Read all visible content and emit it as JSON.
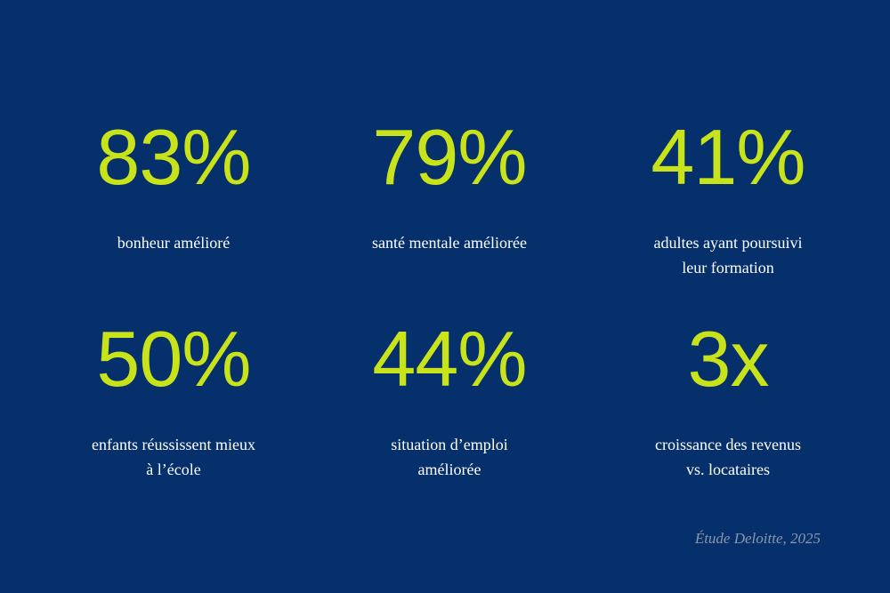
{
  "colors": {
    "background": "#06306b",
    "accent": "#c9e31b",
    "text": "#ffffff",
    "muted": "#8b97ad"
  },
  "stats": [
    {
      "value": "83%",
      "label": "bonheur amélioré"
    },
    {
      "value": "79%",
      "label": "santé mentale améliorée"
    },
    {
      "value": "41%",
      "label": "adultes ayant poursuivi\nleur formation"
    },
    {
      "value": "50%",
      "label": "enfants réussissent mieux\nà l’école"
    },
    {
      "value": "44%",
      "label": "situation d’emploi\naméliorée"
    },
    {
      "value": "3x",
      "label": "croissance des revenus\nvs. locataires"
    }
  ],
  "source": "Étude Deloitte, 2025"
}
